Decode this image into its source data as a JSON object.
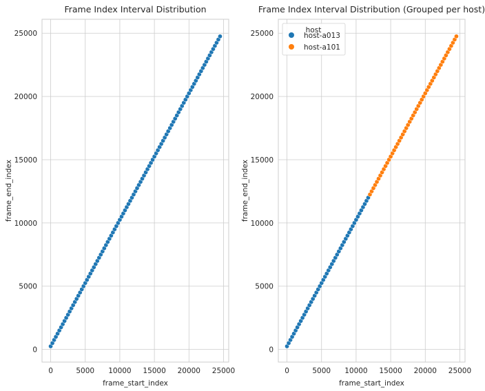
{
  "chart_data": [
    {
      "type": "scatter",
      "title": "Frame Index Interval Distribution",
      "xlabel": "frame_start_index",
      "ylabel": "frame_end_index",
      "xlim": [
        -1250,
        25750
      ],
      "ylim": [
        -1000,
        26100
      ],
      "xticks": [
        0,
        5000,
        10000,
        15000,
        20000,
        25000
      ],
      "yticks": [
        0,
        5000,
        10000,
        15000,
        20000,
        25000
      ],
      "xtick_labels": [
        "0",
        "5000",
        "10000",
        "15000",
        "20000",
        "25000"
      ],
      "ytick_labels": [
        "0",
        "5000",
        "10000",
        "15000",
        "20000",
        "25000"
      ],
      "grid": true,
      "series": [
        {
          "color": "#1f77b4",
          "x_start": 0,
          "x_step": 250,
          "count": 99,
          "y_offset": 249
        }
      ]
    },
    {
      "type": "scatter",
      "title": "Frame Index Interval Distribution (Grouped per host)",
      "xlabel": "frame_start_index",
      "ylabel": "frame_end_index",
      "xlim": [
        -1250,
        25750
      ],
      "ylim": [
        -1000,
        26100
      ],
      "xticks": [
        0,
        5000,
        10000,
        15000,
        20000,
        25000
      ],
      "yticks": [
        0,
        5000,
        10000,
        15000,
        20000,
        25000
      ],
      "xtick_labels": [
        "0",
        "5000",
        "10000",
        "15000",
        "20000",
        "25000"
      ],
      "ytick_labels": [
        "0",
        "5000",
        "10000",
        "15000",
        "20000",
        "25000"
      ],
      "grid": true,
      "legend": {
        "title": "host",
        "placement": "top-left",
        "entries": [
          {
            "label": "host-a013",
            "color": "#1f77b4"
          },
          {
            "label": "host-a101",
            "color": "#ff7f0e"
          }
        ]
      },
      "series": [
        {
          "name": "host-a013",
          "color": "#1f77b4",
          "x_start": 0,
          "x_step": 250,
          "count": 48,
          "y_offset": 249
        },
        {
          "name": "host-a101",
          "color": "#ff7f0e",
          "x_start": 12000,
          "x_step": 250,
          "count": 51,
          "y_offset": 249
        }
      ]
    }
  ]
}
